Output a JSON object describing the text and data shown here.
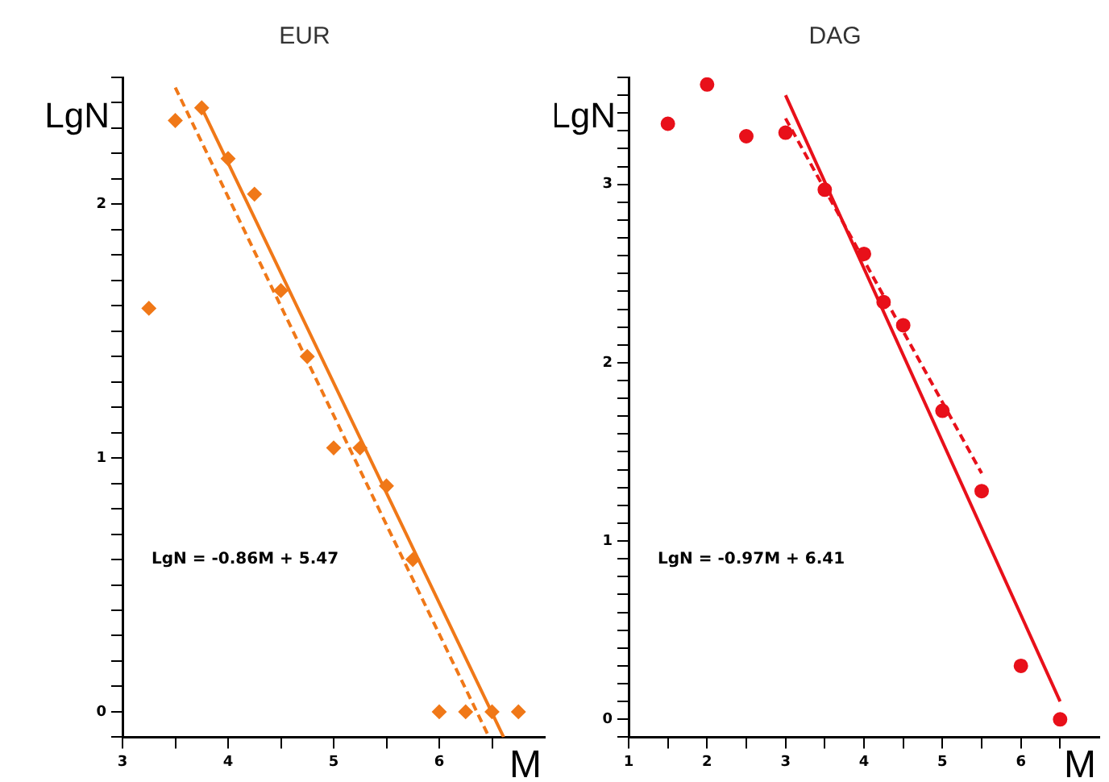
{
  "chart_data": [
    {
      "type": "scatter",
      "title": "EUR",
      "xlabel": "M",
      "ylabel": "LgN",
      "marker": "diamond",
      "grid": false,
      "legend": false,
      "xlim": [
        3,
        7
      ],
      "ylim": [
        -0.1,
        2.5
      ],
      "xticks": [
        3,
        {
          "value": 3.5,
          "label": null
        },
        4,
        {
          "value": 4.5,
          "label": null
        },
        5,
        {
          "value": 5.5,
          "label": null
        },
        6,
        {
          "value": 6.5,
          "label": null
        }
      ],
      "yticks": [
        {
          "value": -0.1,
          "label": null
        },
        0,
        {
          "value": 0.1,
          "label": null
        },
        {
          "value": 0.2,
          "label": null
        },
        {
          "value": 0.3,
          "label": null
        },
        {
          "value": 0.4,
          "label": null
        },
        {
          "value": 0.5,
          "label": null
        },
        {
          "value": 0.6,
          "label": null
        },
        {
          "value": 0.7,
          "label": null
        },
        {
          "value": 0.8,
          "label": null
        },
        {
          "value": 0.9,
          "label": null
        },
        1,
        {
          "value": 1.1,
          "label": null
        },
        {
          "value": 1.2,
          "label": null
        },
        {
          "value": 1.3,
          "label": null
        },
        {
          "value": 1.4,
          "label": null
        },
        {
          "value": 1.5,
          "label": null
        },
        {
          "value": 1.6,
          "label": null
        },
        {
          "value": 1.7,
          "label": null
        },
        {
          "value": 1.8,
          "label": null
        },
        {
          "value": 1.9,
          "label": null
        },
        2,
        {
          "value": 2.1,
          "label": null
        },
        {
          "value": 2.2,
          "label": null
        },
        {
          "value": 2.3,
          "label": null
        },
        {
          "value": 2.4,
          "label": null
        },
        {
          "value": 2.5,
          "label": null
        }
      ],
      "annotations": [
        "LgN = -0.86M + 5.47"
      ],
      "series": [
        {
          "type": "scatter",
          "color": "#f07818",
          "x": [
            3.25,
            3.5,
            3.75,
            4,
            4.25,
            4.5,
            4.75,
            5,
            5.25,
            5.5,
            5.75,
            6,
            6.25,
            6.5,
            6.75
          ],
          "values": [
            1.59,
            2.33,
            2.38,
            2.18,
            2.04,
            1.66,
            1.4,
            1.04,
            1.04,
            0.89,
            0.6,
            0,
            0,
            0,
            0
          ]
        },
        {
          "type": "line",
          "color": "#f07818",
          "line_style": "solid",
          "marker": "none",
          "x": [
            3.75,
            6.61
          ],
          "values": [
            2.38,
            -0.1
          ]
        },
        {
          "type": "line",
          "color": "#f07818",
          "line_style": "dashed",
          "marker": "none",
          "x": [
            3.5,
            6.46
          ],
          "values": [
            2.46,
            -0.09
          ]
        }
      ]
    },
    {
      "type": "scatter",
      "title": "DAG",
      "xlabel": "M",
      "ylabel": "LgN",
      "marker": "circle",
      "grid": false,
      "legend": false,
      "xlim": [
        1,
        7
      ],
      "ylim": [
        -0.1,
        3.6
      ],
      "xticks": [
        1,
        {
          "value": 1.5,
          "label": null
        },
        2,
        {
          "value": 2.5,
          "label": null
        },
        3,
        {
          "value": 3.5,
          "label": null
        },
        4,
        {
          "value": 4.5,
          "label": null
        },
        5,
        {
          "value": 5.5,
          "label": null
        },
        6,
        {
          "value": 6.5,
          "label": null
        }
      ],
      "yticks": [
        {
          "value": -0.1,
          "label": null
        },
        0,
        {
          "value": 0.1,
          "label": null
        },
        {
          "value": 0.2,
          "label": null
        },
        {
          "value": 0.3,
          "label": null
        },
        {
          "value": 0.4,
          "label": null
        },
        {
          "value": 0.5,
          "label": null
        },
        {
          "value": 0.6,
          "label": null
        },
        {
          "value": 0.7,
          "label": null
        },
        {
          "value": 0.8,
          "label": null
        },
        {
          "value": 0.9,
          "label": null
        },
        1,
        {
          "value": 1.1,
          "label": null
        },
        {
          "value": 1.2,
          "label": null
        },
        {
          "value": 1.3,
          "label": null
        },
        {
          "value": 1.4,
          "label": null
        },
        {
          "value": 1.5,
          "label": null
        },
        {
          "value": 1.6,
          "label": null
        },
        {
          "value": 1.7,
          "label": null
        },
        {
          "value": 1.8,
          "label": null
        },
        {
          "value": 1.9,
          "label": null
        },
        2,
        {
          "value": 2.1,
          "label": null
        },
        {
          "value": 2.2,
          "label": null
        },
        {
          "value": 2.3,
          "label": null
        },
        {
          "value": 2.4,
          "label": null
        },
        {
          "value": 2.5,
          "label": null
        },
        {
          "value": 2.6,
          "label": null
        },
        {
          "value": 2.7,
          "label": null
        },
        {
          "value": 2.8,
          "label": null
        },
        {
          "value": 2.9,
          "label": null
        },
        3,
        {
          "value": 3.1,
          "label": null
        },
        {
          "value": 3.2,
          "label": null
        },
        {
          "value": 3.3,
          "label": null
        },
        {
          "value": 3.4,
          "label": null
        },
        {
          "value": 3.5,
          "label": null
        },
        {
          "value": 3.6,
          "label": null
        }
      ],
      "annotations": [
        "LgN = -0.97M + 6.41"
      ],
      "series": [
        {
          "type": "scatter",
          "color": "#e8101a",
          "x": [
            1.5,
            2,
            2.5,
            3,
            3.5,
            4,
            4.25,
            4.5,
            5,
            5.5,
            6,
            6.5
          ],
          "values": [
            3.34,
            3.56,
            3.27,
            3.29,
            2.97,
            2.61,
            2.34,
            2.21,
            1.73,
            1.28,
            0.3,
            0
          ]
        },
        {
          "type": "line",
          "color": "#e8101a",
          "line_style": "solid",
          "marker": "none",
          "x": [
            3,
            6.5
          ],
          "values": [
            3.5,
            0.1
          ]
        },
        {
          "type": "line",
          "color": "#e8101a",
          "line_style": "dashed",
          "marker": "none",
          "x": [
            3,
            5.5
          ],
          "values": [
            3.37,
            1.38
          ]
        }
      ]
    }
  ]
}
